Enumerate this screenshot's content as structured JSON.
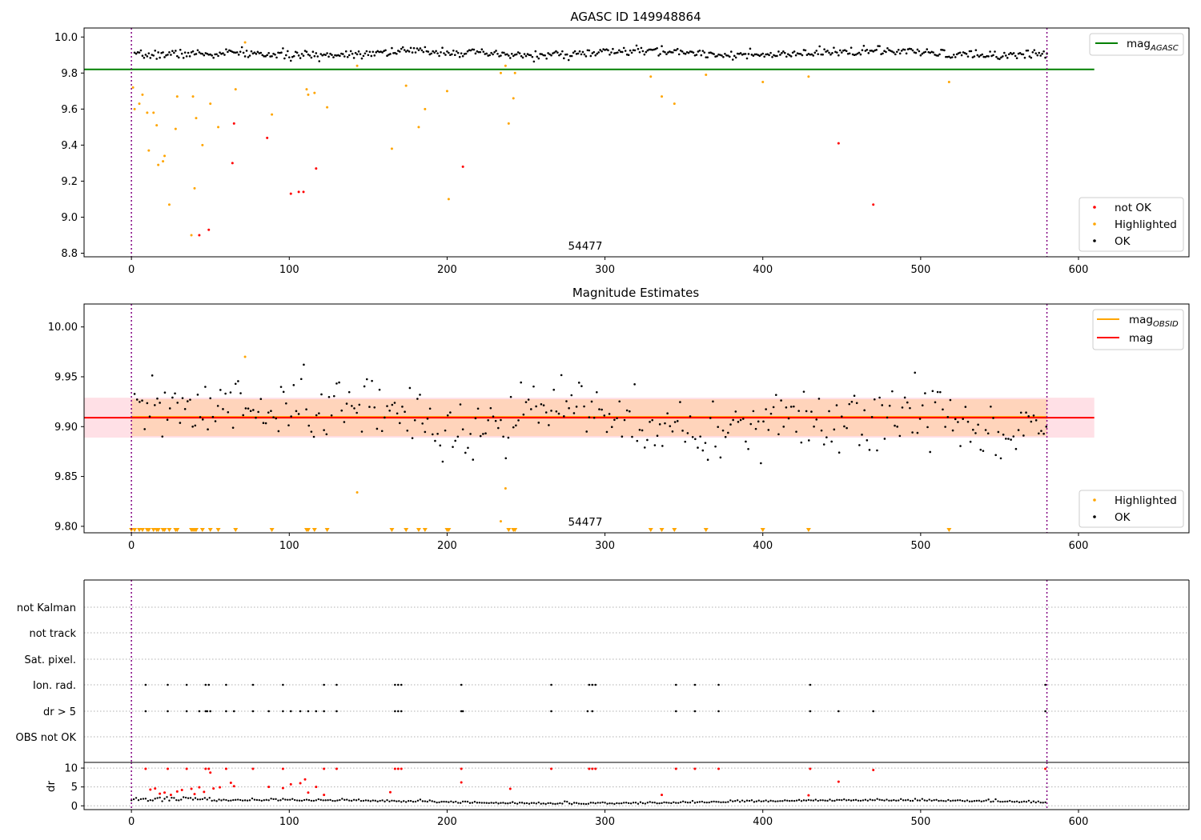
{
  "chart_data": [
    {
      "type": "scatter",
      "title": "AGASC ID 149948864",
      "xlim": [
        -30,
        670
      ],
      "ylim": [
        8.78,
        10.05
      ],
      "xticks": [
        0,
        100,
        200,
        300,
        400,
        500,
        600
      ],
      "yticks": [
        8.8,
        9.0,
        9.2,
        9.4,
        9.6,
        9.8,
        10.0
      ],
      "ytick_labels": [
        "8.8",
        "9.0",
        "9.2",
        "9.4",
        "9.6",
        "9.8",
        "10.0"
      ],
      "obsid_text": "54477",
      "mag_agasc": 9.82,
      "vlines": [
        0,
        580
      ],
      "legend_top": [
        {
          "label": "mag",
          "sub": "AGASC",
          "color": "#008000"
        }
      ],
      "legend_bottom": [
        {
          "label": "not OK",
          "color": "#ff0000"
        },
        {
          "label": "Highlighted",
          "color": "#ffa500"
        },
        {
          "label": "OK",
          "color": "#000000"
        }
      ],
      "series": [
        {
          "name": "not OK",
          "color": "#ff0000",
          "points": [
            [
              43,
              8.9
            ],
            [
              49,
              8.93
            ],
            [
              65,
              9.52
            ],
            [
              64,
              9.3
            ],
            [
              86,
              9.44
            ],
            [
              101,
              9.13
            ],
            [
              106,
              9.14
            ],
            [
              109,
              9.14
            ],
            [
              117,
              9.27
            ],
            [
              210,
              9.28
            ],
            [
              448,
              9.41
            ],
            [
              470,
              9.07
            ]
          ]
        },
        {
          "name": "Highlighted",
          "color": "#ffa500",
          "points": [
            [
              1,
              9.72
            ],
            [
              2,
              9.6
            ],
            [
              5,
              9.63
            ],
            [
              7,
              9.68
            ],
            [
              10,
              9.58
            ],
            [
              11,
              9.37
            ],
            [
              14,
              9.58
            ],
            [
              16,
              9.51
            ],
            [
              17,
              9.29
            ],
            [
              20,
              9.31
            ],
            [
              21,
              9.34
            ],
            [
              24,
              9.07
            ],
            [
              28,
              9.49
            ],
            [
              29,
              9.67
            ],
            [
              38,
              8.9
            ],
            [
              39,
              9.67
            ],
            [
              40,
              9.16
            ],
            [
              41,
              9.55
            ],
            [
              45,
              9.4
            ],
            [
              50,
              9.63
            ],
            [
              55,
              9.5
            ],
            [
              66,
              9.71
            ],
            [
              72,
              9.97
            ],
            [
              89,
              9.57
            ],
            [
              111,
              9.71
            ],
            [
              112,
              9.68
            ],
            [
              116,
              9.69
            ],
            [
              124,
              9.61
            ],
            [
              143,
              9.84
            ],
            [
              165,
              9.38
            ],
            [
              174,
              9.73
            ],
            [
              182,
              9.5
            ],
            [
              186,
              9.6
            ],
            [
              200,
              9.7
            ],
            [
              201,
              9.1
            ],
            [
              234,
              9.8
            ],
            [
              237,
              9.84
            ],
            [
              239,
              9.52
            ],
            [
              242,
              9.66
            ],
            [
              243,
              9.8
            ],
            [
              329,
              9.78
            ],
            [
              336,
              9.67
            ],
            [
              344,
              9.63
            ],
            [
              364,
              9.79
            ],
            [
              400,
              9.75
            ],
            [
              429,
              9.78
            ],
            [
              518,
              9.75
            ]
          ]
        }
      ]
    },
    {
      "type": "scatter",
      "title": "Magnitude Estimates",
      "xlim": [
        -30,
        670
      ],
      "ylim": [
        9.7935,
        10.023
      ],
      "xticks": [
        0,
        100,
        200,
        300,
        400,
        500,
        600
      ],
      "yticks": [
        9.8,
        9.85,
        9.9,
        9.95,
        10.0
      ],
      "ytick_labels": [
        "9.80",
        "9.85",
        "9.90",
        "9.95",
        "10.00"
      ],
      "obsid_text": "54477",
      "mag": 9.909,
      "mag_band": [
        9.889,
        9.929
      ],
      "obsid_band": [
        9.8905,
        9.9275
      ],
      "vlines": [
        0,
        580
      ],
      "legend_top": [
        {
          "label": "mag",
          "sub": "OBSID",
          "color": "#ffa500"
        },
        {
          "label": "mag",
          "sub": "",
          "color": "#ff0000"
        }
      ],
      "legend_bottom": [
        {
          "label": "Highlighted",
          "color": "#ffa500"
        },
        {
          "label": "OK",
          "color": "#000000"
        }
      ],
      "highlighted_points": [
        [
          72,
          9.97
        ],
        [
          143,
          9.834
        ],
        [
          234,
          9.805
        ],
        [
          237,
          9.838
        ]
      ],
      "highlighted_below_x": [
        0,
        2,
        5,
        7,
        10,
        11,
        14,
        16,
        17,
        20,
        21,
        24,
        28,
        29,
        38,
        39,
        40,
        41,
        45,
        50,
        55,
        66,
        89,
        111,
        112,
        116,
        124,
        165,
        174,
        182,
        186,
        200,
        201,
        239,
        242,
        243,
        329,
        336,
        344,
        364,
        400,
        429,
        518
      ]
    },
    {
      "type": "scatter",
      "title": "",
      "xlim": [
        -30,
        670
      ],
      "xticks": [
        0,
        100,
        200,
        300,
        400,
        500,
        600
      ],
      "flag_labels": [
        "not Kalman",
        "not track",
        "Sat. pixel.",
        "Ion. rad.",
        "dr > 5",
        "OBS not OK"
      ],
      "flag_points": {
        "Ion. rad.": [
          9,
          23,
          35,
          47,
          49,
          60,
          77,
          96,
          122,
          130,
          167,
          169,
          171,
          209,
          266,
          290,
          292,
          294,
          345,
          357,
          372,
          430,
          579
        ],
        "dr > 5": [
          9,
          23,
          35,
          43,
          47,
          48,
          50,
          60,
          65,
          77,
          87,
          96,
          101,
          107,
          112,
          117,
          122,
          130,
          167,
          169,
          171,
          209,
          210,
          266,
          289,
          292,
          345,
          357,
          372,
          430,
          448,
          470,
          579
        ]
      },
      "dr": {
        "ylabel": "dr",
        "yticks": [
          0,
          5,
          10
        ],
        "ylim": [
          -1,
          11.5
        ],
        "outliers": [
          [
            9,
            9.8
          ],
          [
            23,
            9.8
          ],
          [
            35,
            9.8
          ],
          [
            47,
            9.8
          ],
          [
            49,
            9.8
          ],
          [
            60,
            9.8
          ],
          [
            77,
            9.8
          ],
          [
            96,
            9.8
          ],
          [
            122,
            9.8
          ],
          [
            130,
            9.8
          ],
          [
            167,
            9.8
          ],
          [
            169,
            9.8
          ],
          [
            171,
            9.8
          ],
          [
            209,
            9.8
          ],
          [
            266,
            9.8
          ],
          [
            290,
            9.8
          ],
          [
            292,
            9.8
          ],
          [
            294,
            9.8
          ],
          [
            345,
            9.8
          ],
          [
            357,
            9.8
          ],
          [
            372,
            9.8
          ],
          [
            430,
            9.8
          ],
          [
            579,
            9.8
          ],
          [
            12,
            4.3
          ],
          [
            15,
            4.6
          ],
          [
            18,
            3.2
          ],
          [
            21,
            3.5
          ],
          [
            25,
            2.9
          ],
          [
            29,
            3.8
          ],
          [
            32,
            4.2
          ],
          [
            38,
            4.5
          ],
          [
            40,
            3.1
          ],
          [
            43,
            4.9
          ],
          [
            46,
            3.7
          ],
          [
            50,
            8.8
          ],
          [
            52,
            4.6
          ],
          [
            56,
            4.9
          ],
          [
            63,
            6.1
          ],
          [
            65,
            5.2
          ],
          [
            87,
            5.0
          ],
          [
            96,
            4.7
          ],
          [
            101,
            5.7
          ],
          [
            107,
            6.0
          ],
          [
            110,
            7.0
          ],
          [
            112,
            3.5
          ],
          [
            117,
            5.0
          ],
          [
            122,
            2.9
          ],
          [
            164,
            3.6
          ],
          [
            209,
            6.2
          ],
          [
            240,
            4.5
          ],
          [
            336,
            2.9
          ],
          [
            429,
            2.8
          ],
          [
            448,
            6.4
          ],
          [
            470,
            9.5
          ]
        ]
      }
    }
  ]
}
